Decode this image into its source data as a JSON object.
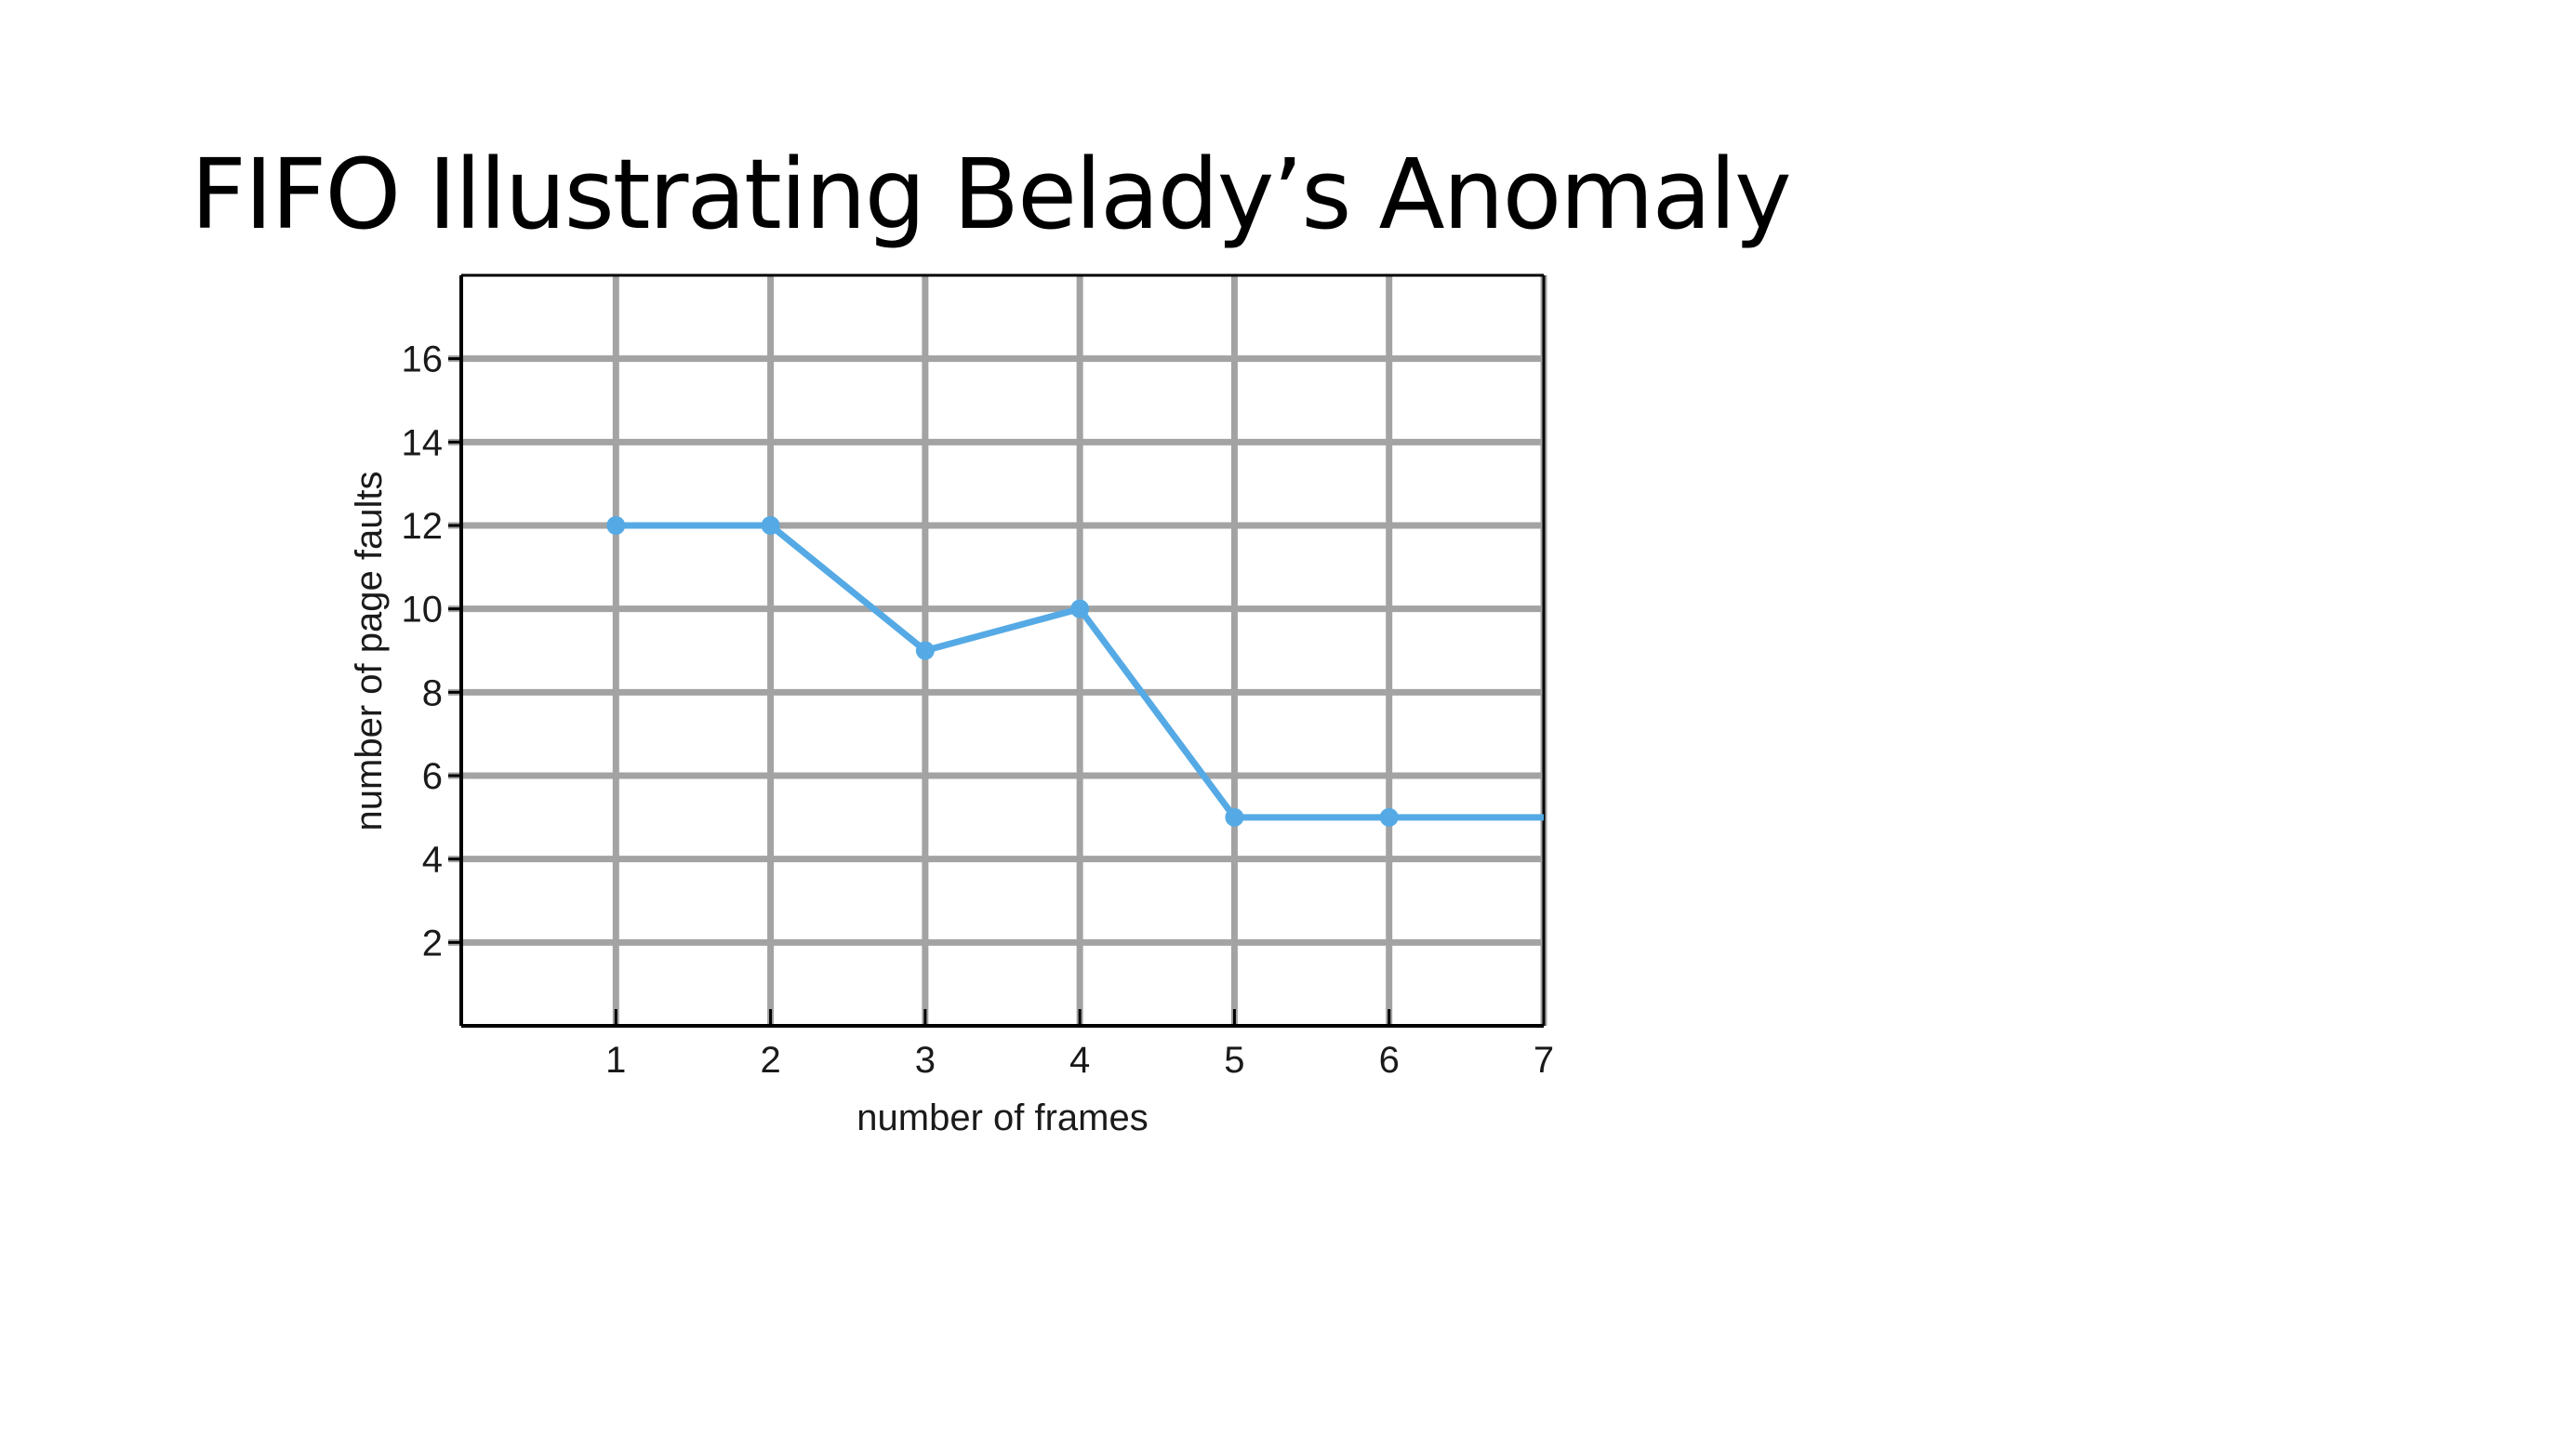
{
  "slide": {
    "title": "FIFO Illustrating Belady’s Anomaly"
  },
  "colors": {
    "series": "#55aae5",
    "grid": "#a3a3a3",
    "axis": "#000000",
    "background": "#ffffff"
  },
  "chart_data": {
    "type": "line",
    "title": "",
    "xlabel": "number of frames",
    "ylabel": "number of page faults",
    "x_ticks": [
      1,
      2,
      3,
      4,
      5,
      6,
      7
    ],
    "y_ticks": [
      2,
      4,
      6,
      8,
      10,
      12,
      14,
      16
    ],
    "xlim": [
      0,
      7
    ],
    "ylim": [
      0,
      18
    ],
    "grid": true,
    "series": [
      {
        "x": [
          1,
          2,
          3,
          4,
          5,
          6,
          7
        ],
        "y": [
          12,
          12,
          9,
          10,
          5,
          5,
          5
        ],
        "markers_at": [
          1,
          2,
          3,
          4,
          5,
          6
        ]
      }
    ]
  }
}
